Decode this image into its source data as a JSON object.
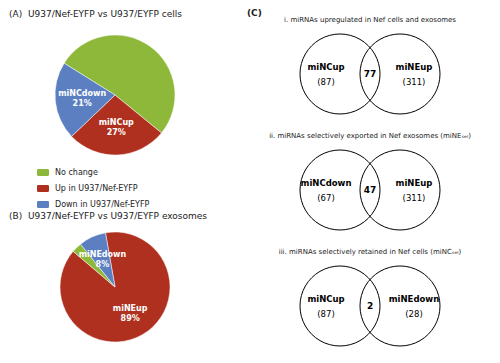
{
  "chart_data": [
    {
      "type": "pie",
      "title": "(A)  U937/Nef-EYFP vs U937/EYFP cells",
      "categories": [
        "No change",
        "Up in U937/Nef-EYFP",
        "Down in U937/Nef-EYFP"
      ],
      "values": [
        52,
        27,
        21
      ],
      "colors": [
        "#8db83a",
        "#b03020",
        "#5b7fc1"
      ],
      "data_labels": true,
      "value_labels": [
        null,
        "miNCup\n27%",
        "miNCdown\n21%"
      ],
      "legend": "left"
    },
    {
      "type": "pie",
      "title": "(B)  U937/Nef-EYFP vs U937/EYFP exosomes",
      "categories": [
        "Up in U937/Nef-EYFP",
        "No change",
        "Down in U937/Nef-EYFP"
      ],
      "values": [
        89,
        3,
        8
      ],
      "colors": [
        "#b03020",
        "#8db83a",
        "#5b7fc1"
      ],
      "data_labels": true,
      "value_labels": [
        "miNEup\n89%",
        null,
        "miNEdown\n8%"
      ]
    },
    {
      "type": "venn",
      "title": "(C)",
      "panels": [
        {
          "title": "i. miRNAs upregulated in Nef cells and exosomes",
          "sets": [
            {
              "name": "miNCup",
              "value": 87,
              "value_label": "(87)"
            },
            {
              "name": "miNEup",
              "value": 311,
              "value_label": "(311)"
            }
          ],
          "overlap": 77
        },
        {
          "title": "ii. miRNAs selectively exported in Nef exosomes (miNEₛₑₗ)",
          "sets": [
            {
              "name": "miNCdown",
              "value": 67,
              "value_label": "(67)"
            },
            {
              "name": "miNEup",
              "value": 311,
              "value_label": "(311)"
            }
          ],
          "overlap": 47
        },
        {
          "title": "iii. miRNAs selectively retained in Nef cells (miNCₛₑₗ)",
          "sets": [
            {
              "name": "miNCup",
              "value": 87,
              "value_label": "(87)"
            },
            {
              "name": "miNEdown",
              "value": 28,
              "value_label": "(28)"
            }
          ],
          "overlap": 2
        }
      ]
    }
  ]
}
